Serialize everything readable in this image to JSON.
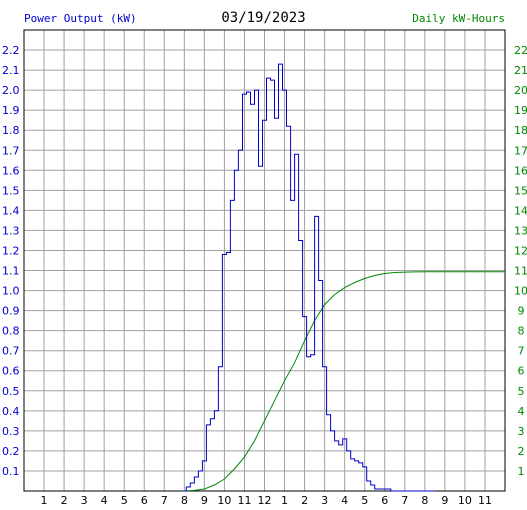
{
  "chart_data": {
    "type": "line",
    "title": "03/19/2023",
    "left_axis_label": "Power Output (kW)",
    "right_axis_label": "Daily kW-Hours",
    "x_ticks": [
      "1",
      "2",
      "3",
      "4",
      "5",
      "6",
      "7",
      "8",
      "9",
      "10",
      "11",
      "12",
      "1",
      "2",
      "3",
      "4",
      "5",
      "6",
      "7",
      "8",
      "9",
      "10",
      "11"
    ],
    "left_ticks": [
      "0.1",
      "0.2",
      "0.3",
      "0.4",
      "0.5",
      "0.6",
      "0.7",
      "0.8",
      "0.9",
      "1.0",
      "1.1",
      "1.2",
      "1.3",
      "1.4",
      "1.5",
      "1.6",
      "1.7",
      "1.8",
      "1.9",
      "2.0",
      "2.1",
      "2.2"
    ],
    "right_ticks": [
      "1",
      "2",
      "3",
      "4",
      "5",
      "6",
      "7",
      "8",
      "9",
      "10",
      "11",
      "12",
      "13",
      "14",
      "15",
      "16",
      "17",
      "18",
      "19",
      "20",
      "21",
      "22"
    ],
    "x_unit": "hour of day (0 = midnight)",
    "xlim": [
      0,
      24
    ],
    "ylim_left": [
      0,
      2.3
    ],
    "ylim_right": [
      0,
      23
    ],
    "grid": true,
    "colors": {
      "power": "#0000cc",
      "energy": "#008800",
      "grid": "#a0a0a0",
      "axis": "#000000"
    },
    "series": [
      {
        "name": "Power Output (kW)",
        "axis": "left",
        "x": [
          7.9,
          8.1,
          8.3,
          8.5,
          8.7,
          8.9,
          9.1,
          9.3,
          9.5,
          9.7,
          9.9,
          10.1,
          10.3,
          10.5,
          10.7,
          10.9,
          11.1,
          11.3,
          11.5,
          11.7,
          11.9,
          12.1,
          12.3,
          12.5,
          12.7,
          12.9,
          13.1,
          13.3,
          13.5,
          13.7,
          13.9,
          14.1,
          14.3,
          14.5,
          14.7,
          14.9,
          15.1,
          15.3,
          15.5,
          15.7,
          15.9,
          16.1,
          16.3,
          16.5,
          16.7,
          16.9,
          17.1,
          17.3,
          17.5,
          17.7,
          17.9,
          18.1,
          18.3,
          18.5,
          18.7,
          18.9,
          19.1,
          19.3,
          19.5,
          19.7,
          19.9,
          20.1,
          20.3,
          20.5
        ],
        "values": [
          0,
          0.02,
          0.04,
          0.07,
          0.1,
          0.15,
          0.33,
          0.36,
          0.4,
          0.62,
          1.18,
          1.19,
          1.45,
          1.6,
          1.7,
          1.98,
          1.99,
          1.93,
          2.0,
          1.62,
          1.85,
          2.06,
          2.05,
          1.86,
          2.13,
          2.0,
          1.82,
          1.45,
          1.68,
          1.25,
          0.87,
          0.67,
          0.68,
          1.37,
          1.05,
          0.62,
          0.38,
          0.3,
          0.25,
          0.23,
          0.26,
          0.2,
          0.16,
          0.15,
          0.14,
          0.12,
          0.05,
          0.03,
          0.01,
          0.01,
          0.01,
          0.01,
          0,
          0,
          0,
          0,
          0,
          0,
          0,
          0,
          0,
          0,
          0,
          0
        ]
      },
      {
        "name": "Daily kW-Hours",
        "axis": "right",
        "x": [
          7.9,
          8.5,
          9,
          9.5,
          10,
          10.5,
          11,
          11.5,
          12,
          12.5,
          13,
          13.5,
          14,
          14.5,
          15,
          15.5,
          16,
          16.5,
          17,
          17.5,
          18,
          18.5,
          19,
          19.5,
          20,
          21,
          22,
          23,
          24
        ],
        "values": [
          0,
          0.03,
          0.1,
          0.3,
          0.6,
          1.1,
          1.7,
          2.5,
          3.5,
          4.5,
          5.5,
          6.4,
          7.5,
          8.5,
          9.3,
          9.8,
          10.15,
          10.4,
          10.6,
          10.75,
          10.85,
          10.9,
          10.92,
          10.93,
          10.94,
          10.94,
          10.94,
          10.94,
          10.94
        ]
      }
    ]
  }
}
